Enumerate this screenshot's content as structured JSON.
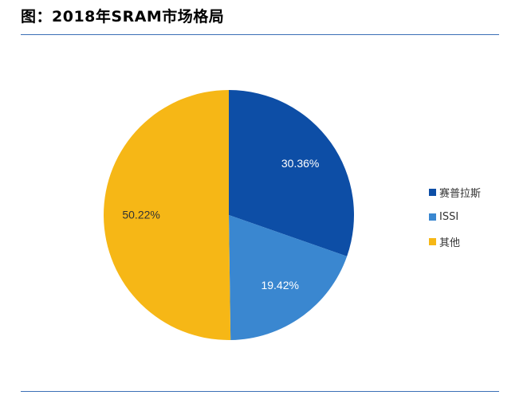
{
  "figure": {
    "title": "图：2018年SRAM市场格局"
  },
  "chart_data": {
    "type": "pie",
    "title": "",
    "start_angle": "12 o'clock",
    "direction": "clockwise",
    "legend_position": "right",
    "slices": [
      {
        "label": "赛普拉斯",
        "value": 30.36,
        "value_label": "30.36%",
        "color": "#0d4ea6"
      },
      {
        "label": "ISSI",
        "value": 19.42,
        "value_label": "19.42%",
        "color": "#3a87d0"
      },
      {
        "label": "其他",
        "value": 50.22,
        "value_label": "50.22%",
        "color": "#f6b716"
      }
    ]
  }
}
